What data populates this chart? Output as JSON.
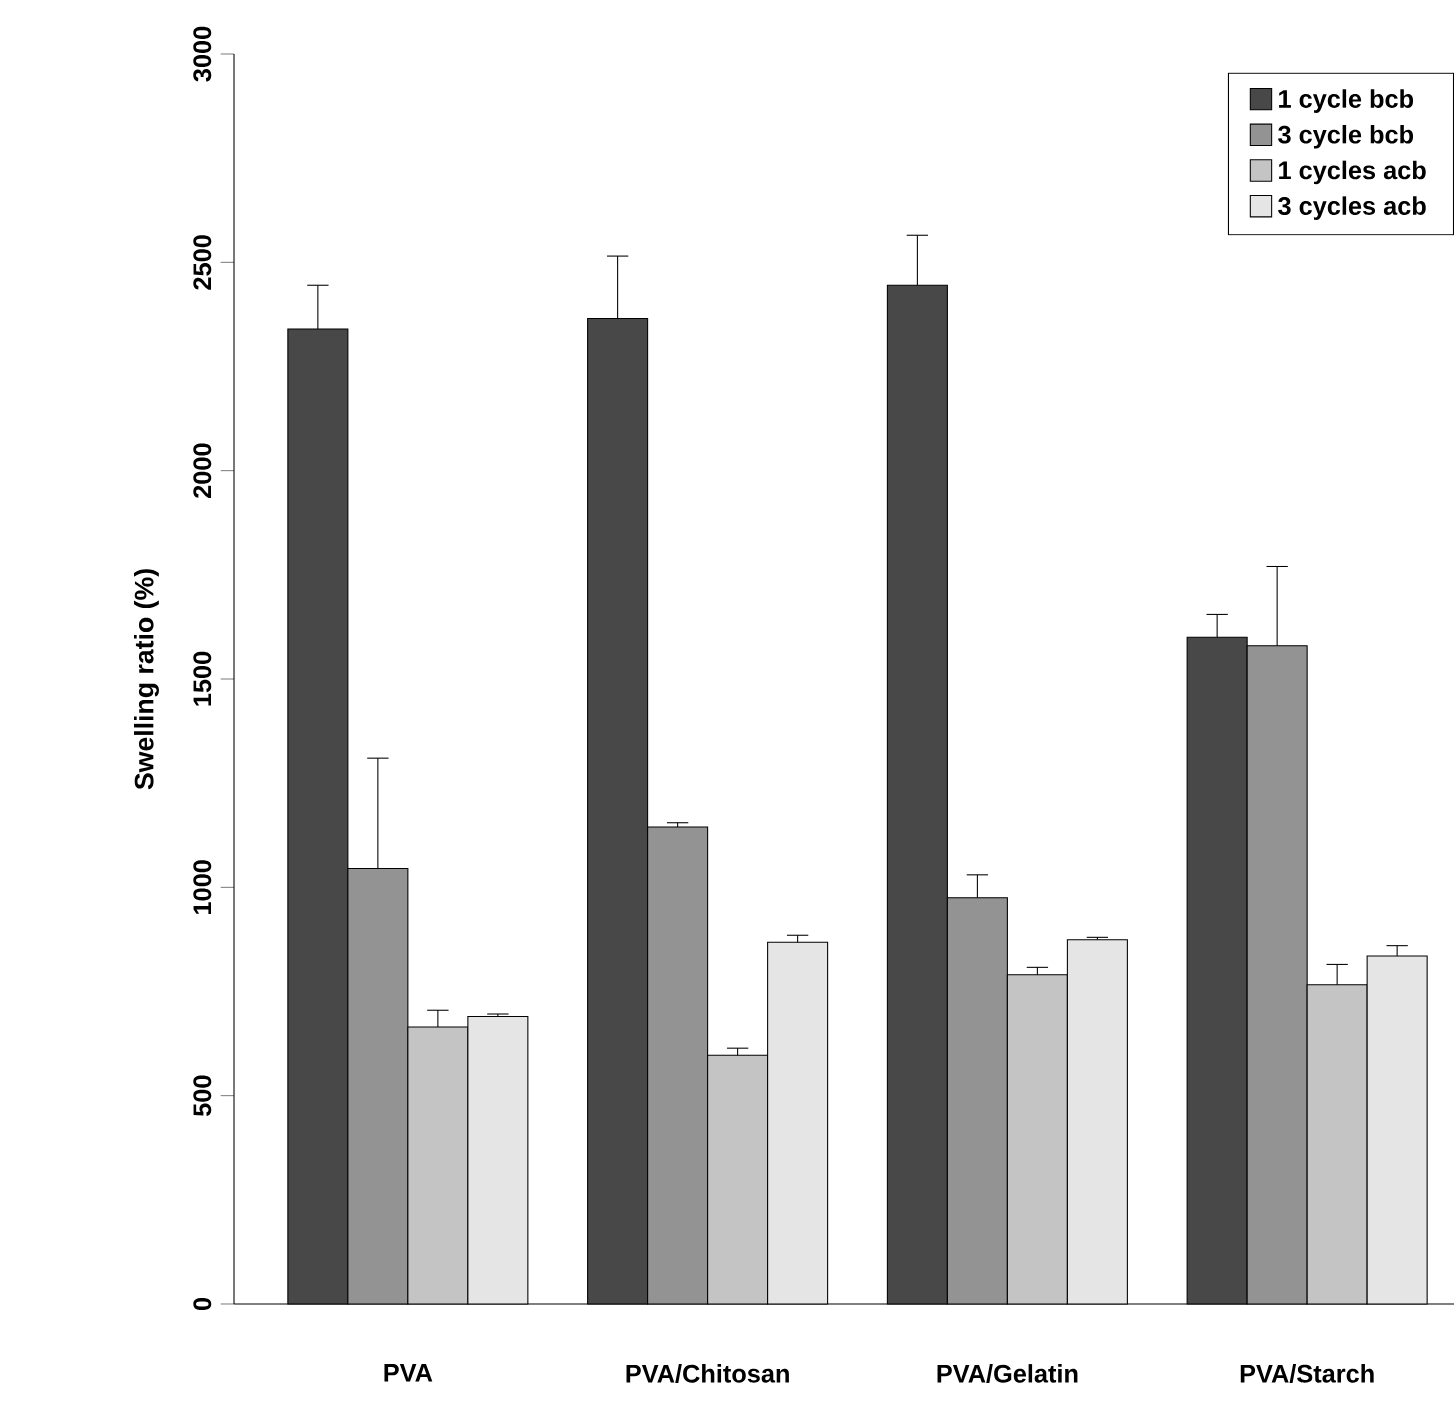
{
  "chart_data": {
    "type": "bar",
    "ylabel": "Swelling ratio (%)",
    "categories": [
      "PVA",
      "PVA/Chitosan",
      "PVA/Gelatin",
      "PVA/Starch"
    ],
    "series": [
      {
        "name": "1 cycle bcb",
        "color": "#484848",
        "values": [
          2340,
          2365,
          2445,
          1600
        ],
        "errors": [
          [
            2340,
            2445
          ],
          [
            2365,
            2515
          ],
          [
            2445,
            2565
          ],
          [
            1600,
            1655
          ]
        ]
      },
      {
        "name": "3 cycle bcb",
        "color": "#939393",
        "values": [
          1045,
          1145,
          975,
          1580
        ],
        "errors": [
          [
            1045,
            1310
          ],
          [
            1145,
            1155
          ],
          [
            975,
            1030
          ],
          [
            1580,
            1770
          ]
        ]
      },
      {
        "name": "1 cycles acb",
        "color": "#c4c4c4",
        "values": [
          665,
          597,
          790,
          766
        ],
        "errors": [
          [
            665,
            705
          ],
          [
            597,
            614
          ],
          [
            790,
            808
          ],
          [
            766,
            815
          ]
        ]
      },
      {
        "name": "3 cycles acb",
        "color": "#e5e5e5",
        "values": [
          690,
          868,
          874,
          835
        ],
        "errors": [
          [
            690,
            696
          ],
          [
            868,
            885
          ],
          [
            874,
            880
          ],
          [
            835,
            860
          ]
        ]
      }
    ],
    "ylim": [
      0,
      3000
    ],
    "yticks": [
      0,
      500,
      1000,
      1500,
      2000,
      2500,
      3000
    ],
    "grid": false,
    "legend": "top right"
  }
}
